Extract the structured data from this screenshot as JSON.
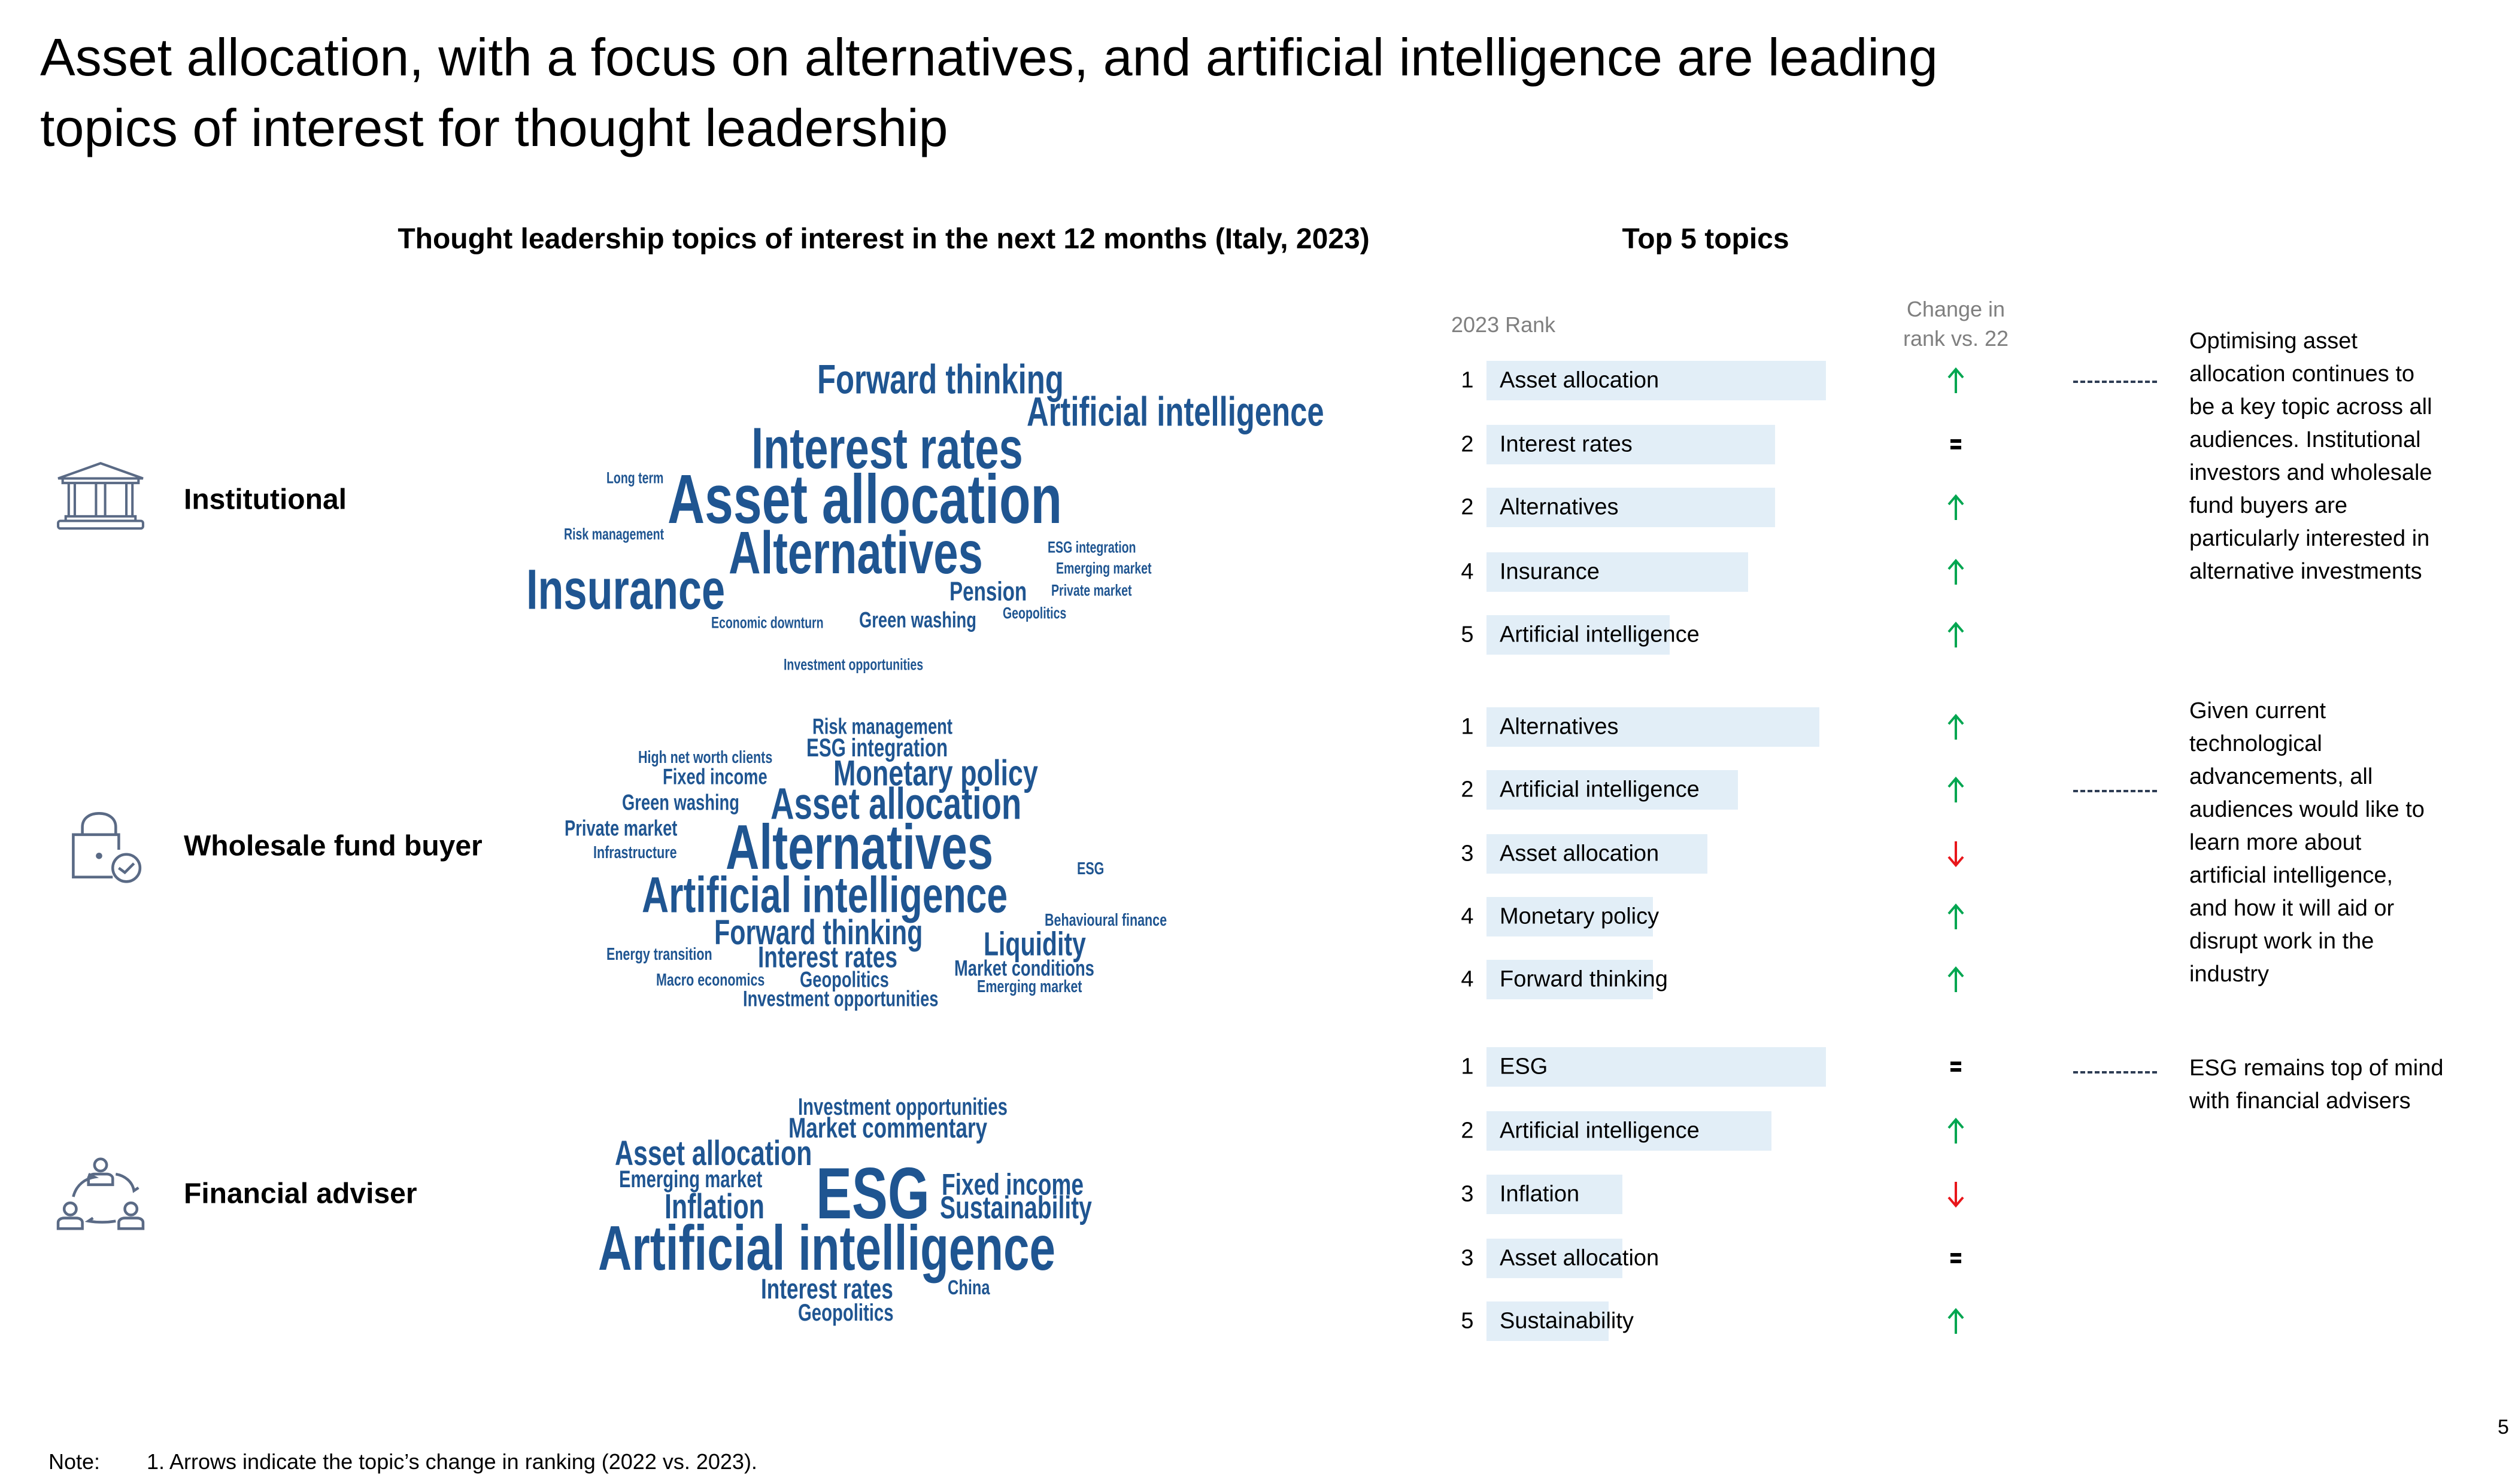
{
  "title": {
    "lines": [
      "Asset allocation, with a focus on alternatives, and artificial intelligence are leading",
      "topics of interest for thought leadership"
    ]
  },
  "wordcloud_title": "Thought leadership topics of interest in the next 12 months (Italy, 2023)",
  "top5_title": "Top 5 topics",
  "table_headers": {
    "rank": "2023 Rank",
    "change_line1": "Change in",
    "change_line2": "rank vs. 22"
  },
  "colors": {
    "wordcloud": "#1F5591",
    "bar": "#E2EEF7",
    "up": "#00A650",
    "down": "#E8161B",
    "icon": "#5A6A85"
  },
  "segments": [
    {
      "label": "Institutional",
      "icon": "bank-building-icon",
      "words": [
        "Forward thinking",
        "Artificial intelligence",
        "Interest rates",
        "Long term",
        "Asset allocation",
        "Risk management",
        "Alternatives",
        "ESG integration",
        "Emerging market",
        "Insurance",
        "Pension",
        "Private market",
        "Geopolitics",
        "Economic downturn",
        "Green washing",
        "Investment opportunities"
      ],
      "top5": [
        {
          "rank": "1",
          "topic": "Asset allocation",
          "bar_pct": 100,
          "change": "up"
        },
        {
          "rank": "2",
          "topic": "Interest rates",
          "bar_pct": 85,
          "change": "same"
        },
        {
          "rank": "2",
          "topic": "Alternatives",
          "bar_pct": 85,
          "change": "up"
        },
        {
          "rank": "4",
          "topic": "Insurance",
          "bar_pct": 77,
          "change": "up"
        },
        {
          "rank": "5",
          "topic": "Artificial intelligence",
          "bar_pct": 54,
          "change": "up"
        }
      ],
      "comment": [
        "Optimising asset",
        "allocation continues to",
        "be a key topic across all",
        "audiences. Institutional",
        "investors and wholesale",
        "fund buyers are",
        "particularly interested in",
        "alternative investments"
      ]
    },
    {
      "label": "Wholesale fund buyer",
      "icon": "lock-check-icon",
      "words": [
        "Risk management",
        "ESG integration",
        "High net worth clients",
        "Fixed income",
        "Monetary policy",
        "Green washing",
        "Asset allocation",
        "Private market",
        "Infrastructure",
        "Alternatives",
        "ESG",
        "Artificial intelligence",
        "Behavioural finance",
        "Forward thinking",
        "Liquidity",
        "Energy transition",
        "Interest rates",
        "Market conditions",
        "Macro economics",
        "Geopolitics",
        "Emerging market",
        "Investment opportunities"
      ],
      "top5": [
        {
          "rank": "1",
          "topic": "Alternatives",
          "bar_pct": 98,
          "change": "up"
        },
        {
          "rank": "2",
          "topic": "Artificial intelligence",
          "bar_pct": 74,
          "change": "up"
        },
        {
          "rank": "3",
          "topic": "Asset allocation",
          "bar_pct": 65,
          "change": "down"
        },
        {
          "rank": "4",
          "topic": "Monetary policy",
          "bar_pct": 49,
          "change": "up"
        },
        {
          "rank": "4",
          "topic": "Forward thinking",
          "bar_pct": 49,
          "change": "up"
        }
      ],
      "comment": [
        "Given current",
        "technological",
        "advancements, all",
        "audiences would like to",
        "learn more about",
        "artificial intelligence,",
        "and how it will aid or",
        "disrupt work in the",
        "industry"
      ]
    },
    {
      "label": "Financial adviser",
      "icon": "people-cycle-icon",
      "words": [
        "Investment opportunities",
        "Market commentary",
        "Asset allocation",
        "Emerging market",
        "ESG",
        "Fixed income",
        "Inflation",
        "Sustainability",
        "Artificial intelligence",
        "Interest rates",
        "China",
        "Geopolitics"
      ],
      "top5": [
        {
          "rank": "1",
          "topic": "ESG",
          "bar_pct": 100,
          "change": "same"
        },
        {
          "rank": "2",
          "topic": "Artificial intelligence",
          "bar_pct": 84,
          "change": "up"
        },
        {
          "rank": "3",
          "topic": "Inflation",
          "bar_pct": 40,
          "change": "down"
        },
        {
          "rank": "3",
          "topic": "Asset allocation",
          "bar_pct": 40,
          "change": "same"
        },
        {
          "rank": "5",
          "topic": "Sustainability",
          "bar_pct": 36,
          "change": "up"
        }
      ],
      "comment": [
        "ESG remains top of mind",
        "with financial advisers"
      ]
    }
  ],
  "note": {
    "label": "Note:",
    "text": "1. Arrows indicate the topic’s change in ranking (2022 vs. 2023)."
  },
  "page_number": "5"
}
